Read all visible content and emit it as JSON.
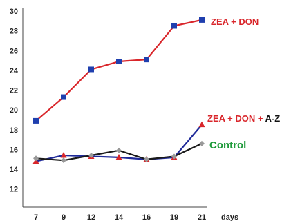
{
  "chart_data": {
    "type": "line",
    "title": "",
    "xlabel": "",
    "ylabel": "",
    "categories": [
      "7",
      "9",
      "12",
      "14",
      "16",
      "19",
      "21"
    ],
    "x_unit_label": "days",
    "ylim": [
      11,
      30
    ],
    "y_ticks": [
      12,
      14,
      16,
      18,
      20,
      22,
      24,
      26,
      28,
      30
    ],
    "grid": false,
    "legend": "inline labels at right end of lines",
    "series": [
      {
        "name": "ZEA + DON",
        "color": "#d9262b",
        "marker_color": "#1f3fae",
        "marker": "square",
        "values": [
          18.9,
          21.3,
          24.1,
          24.9,
          25.1,
          28.5,
          29.1
        ]
      },
      {
        "name": "ZEA + DON + A-Z",
        "color": "#1f2a99",
        "marker_color": "#d9262b",
        "marker": "triangle",
        "values": [
          14.8,
          15.4,
          15.3,
          15.2,
          15.0,
          15.2,
          18.5
        ]
      },
      {
        "name": "Control",
        "color": "#1a1a1a",
        "marker_color": "#999999",
        "marker": "diamond",
        "values": [
          15.1,
          14.9,
          15.4,
          15.9,
          15.0,
          15.3,
          16.6
        ]
      }
    ],
    "annotations": {
      "zea_don": {
        "text": "ZEA + DON",
        "color": "#d9262b"
      },
      "zea_don_az_prefix": {
        "text": "ZEA + DON + ",
        "color": "#d9262b"
      },
      "zea_don_az_suffix": {
        "text": "A-Z",
        "color": "#111111"
      },
      "control": {
        "text": "Control",
        "color": "#1e9a3a"
      }
    }
  }
}
